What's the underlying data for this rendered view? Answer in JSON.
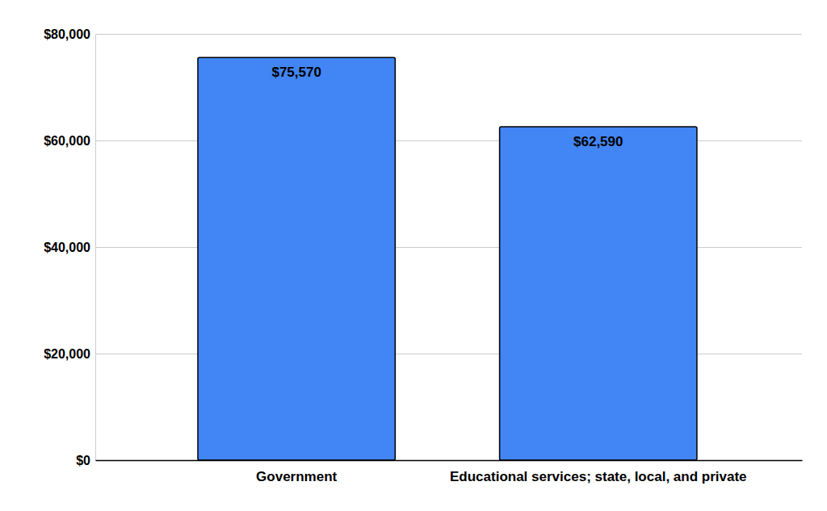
{
  "chart_data": {
    "type": "bar",
    "categories": [
      "Government",
      "Educational services; state, local, and private"
    ],
    "values": [
      75570,
      62590
    ],
    "value_labels": [
      "$75,570",
      "$62,590"
    ],
    "color": "#4285f4",
    "ylim": [
      0,
      80000
    ],
    "yticks": [
      {
        "value": 0,
        "label": "$0"
      },
      {
        "value": 20000,
        "label": "$20,000"
      },
      {
        "value": 40000,
        "label": "$40,000"
      },
      {
        "value": 60000,
        "label": "$60,000"
      },
      {
        "value": 80000,
        "label": "$80,000"
      }
    ],
    "grid": true,
    "data_labels": true
  }
}
